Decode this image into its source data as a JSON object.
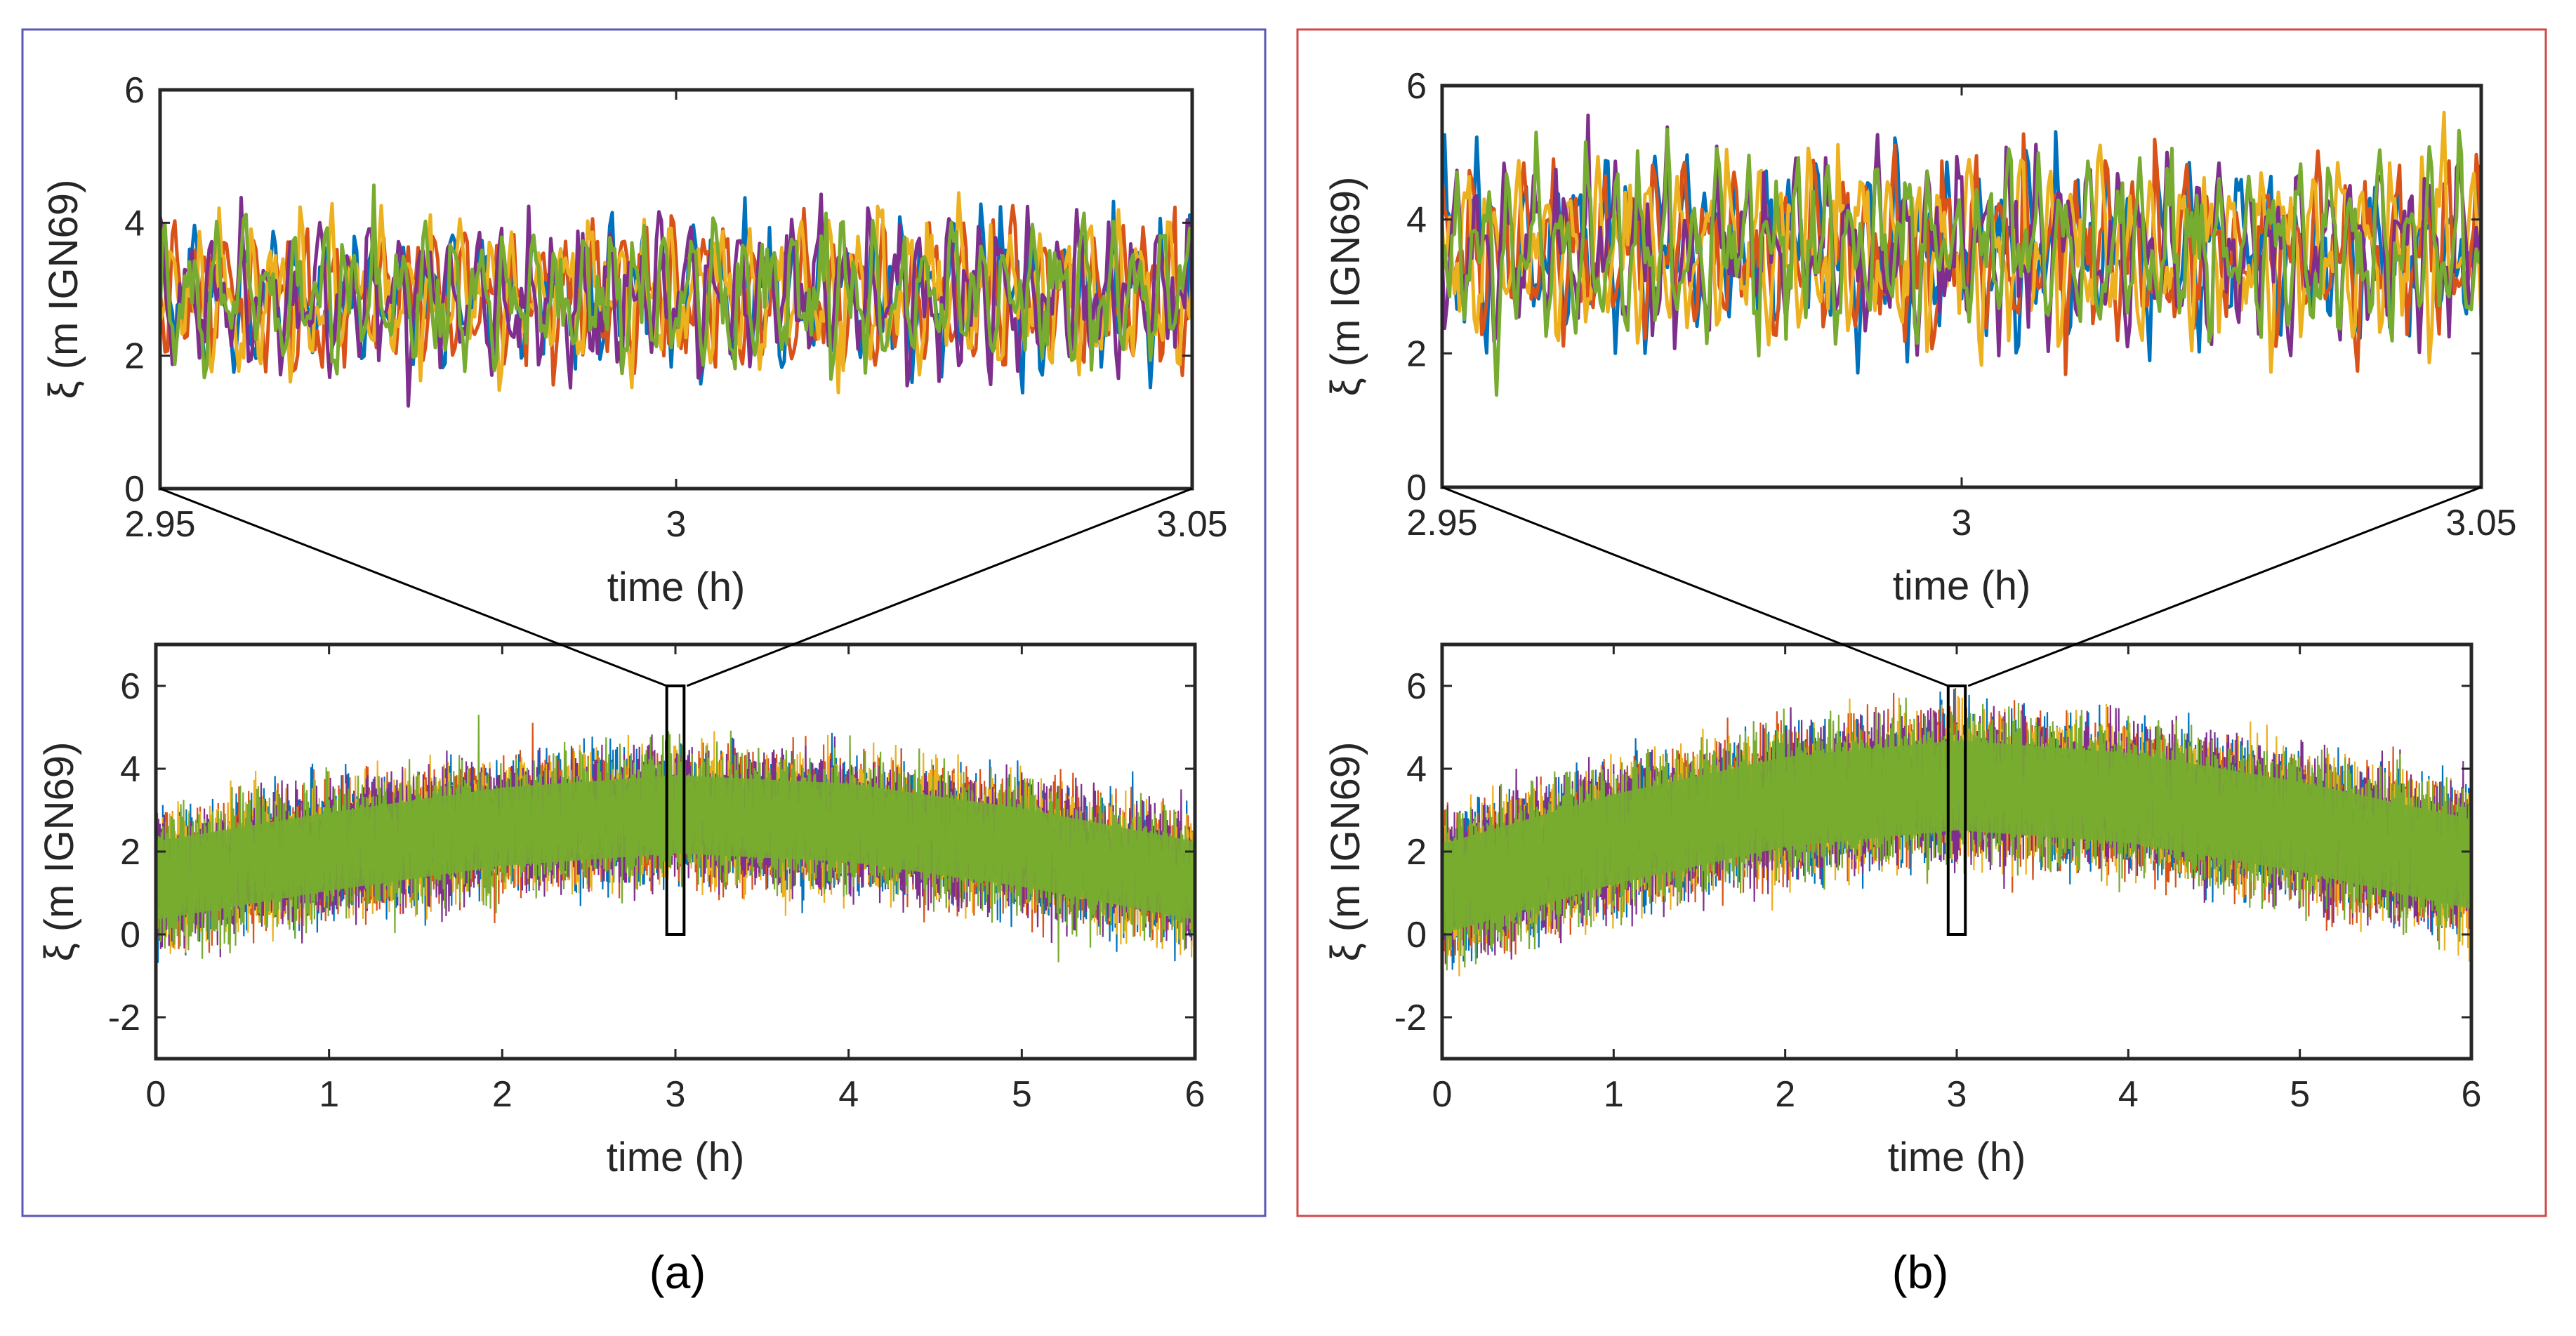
{
  "figure": {
    "panels": [
      {
        "id": "a",
        "caption": "(a)",
        "border_color": "#5b57b8"
      },
      {
        "id": "b",
        "caption": "(b)",
        "border_color": "#d04a4a"
      }
    ]
  },
  "series_colors": [
    "#0072BD",
    "#D95319",
    "#EDB120",
    "#7E2F8E",
    "#77AC30"
  ],
  "chart_data": [
    {
      "panel": "a",
      "role": "zoom-inset",
      "type": "line",
      "title": "",
      "xlabel": "time (h)",
      "ylabel": "ξ (m IGN69)",
      "xlim": [
        2.95,
        3.05
      ],
      "ylim": [
        0,
        6
      ],
      "xticks": [
        2.95,
        3,
        3.05
      ],
      "xtick_labels": [
        "2.95",
        "3",
        "3.05"
      ],
      "yticks": [
        0,
        2,
        4,
        6
      ],
      "ytick_labels": [
        "0",
        "2",
        "4",
        "6"
      ],
      "series_count": 5,
      "mean": 2.9,
      "amplitude": 1.15
    },
    {
      "panel": "a",
      "role": "full-record",
      "type": "line",
      "title": "",
      "xlabel": "time (h)",
      "ylabel": "ξ (m IGN69)",
      "xlim": [
        0,
        6
      ],
      "ylim": [
        -3,
        7
      ],
      "xticks": [
        0,
        1,
        2,
        3,
        4,
        5,
        6
      ],
      "xtick_labels": [
        "0",
        "1",
        "2",
        "3",
        "4",
        "5",
        "6"
      ],
      "yticks": [
        -2,
        0,
        2,
        4,
        6
      ],
      "ytick_labels": [
        "-2",
        "0",
        "2",
        "4",
        "6"
      ],
      "series_count": 5,
      "envelope_mean": {
        "t": [
          0,
          1,
          2,
          3,
          4,
          5,
          6
        ],
        "value": [
          1.3,
          2.0,
          2.6,
          2.9,
          2.7,
          2.1,
          1.3
        ]
      },
      "envelope_halfwidth": 1.35,
      "zoom_window": {
        "t": [
          2.95,
          3.05
        ],
        "y": [
          0,
          6
        ]
      }
    },
    {
      "panel": "b",
      "role": "zoom-inset",
      "type": "line",
      "title": "",
      "xlabel": "time (h)",
      "ylabel": "ξ (m IGN69)",
      "xlim": [
        2.95,
        3.05
      ],
      "ylim": [
        0,
        6
      ],
      "xticks": [
        2.95,
        3,
        3.05
      ],
      "xtick_labels": [
        "2.95",
        "3",
        "3.05"
      ],
      "yticks": [
        0,
        2,
        4,
        6
      ],
      "ytick_labels": [
        "0",
        "2",
        "4",
        "6"
      ],
      "series_count": 5,
      "mean": 3.55,
      "amplitude": 1.3
    },
    {
      "panel": "b",
      "role": "full-record",
      "type": "line",
      "title": "",
      "xlabel": "time (h)",
      "ylabel": "ξ (m IGN69)",
      "xlim": [
        0,
        6
      ],
      "ylim": [
        -3,
        7
      ],
      "xticks": [
        0,
        1,
        2,
        3,
        4,
        5,
        6
      ],
      "xtick_labels": [
        "0",
        "1",
        "2",
        "3",
        "4",
        "5",
        "6"
      ],
      "yticks": [
        -2,
        0,
        2,
        4,
        6
      ],
      "ytick_labels": [
        "-2",
        "0",
        "2",
        "4",
        "6"
      ],
      "series_count": 5,
      "envelope_mean": {
        "t": [
          0,
          1,
          2,
          3,
          4,
          5,
          6
        ],
        "value": [
          1.1,
          2.3,
          3.2,
          3.6,
          3.3,
          2.6,
          1.7
        ]
      },
      "envelope_halfwidth": 1.55,
      "zoom_window": {
        "t": [
          2.95,
          3.05
        ],
        "y": [
          0,
          6
        ]
      }
    }
  ]
}
